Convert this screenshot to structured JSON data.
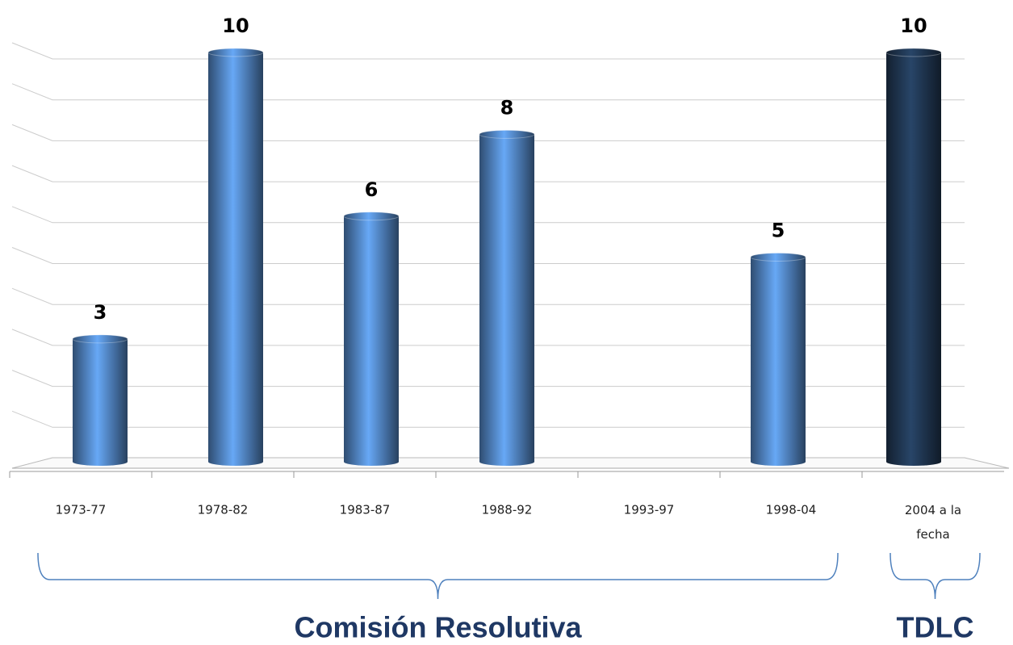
{
  "chart_data": {
    "type": "bar",
    "categories": [
      "1973-77",
      "1978-82",
      "1983-87",
      "1988-92",
      "1993-97",
      "1998-04",
      "2004 a la fecha"
    ],
    "values": [
      3,
      10,
      6,
      8,
      null,
      5,
      10
    ],
    "colors": [
      "#4f81bd",
      "#4f81bd",
      "#4f81bd",
      "#4f81bd",
      "#4f81bd",
      "#4f81bd",
      "#1f3550"
    ],
    "ylim": [
      0,
      10
    ],
    "yticks": [
      0,
      1,
      2,
      3,
      4,
      5,
      6,
      7,
      8,
      9,
      10
    ],
    "grid": true,
    "groups": [
      {
        "label": "Comisión Resolutiva",
        "span": 6
      },
      {
        "label": "TDLC",
        "span": 1
      }
    ]
  }
}
